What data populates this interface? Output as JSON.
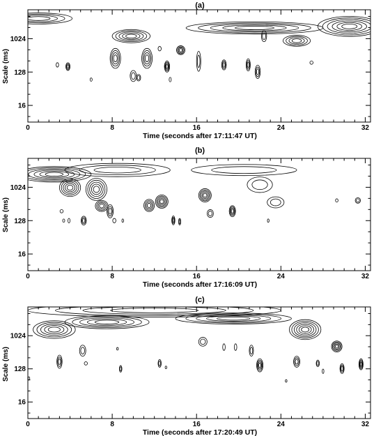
{
  "chart_data": [
    {
      "type": "contour",
      "panel_label": "(a)",
      "xlabel": "Time (seconds after 17:11:47 UT)",
      "ylabel": "Scale (ms)",
      "xlim": [
        0,
        32.5
      ],
      "ylim_log2": [
        2.5,
        12.6
      ],
      "x_ticks": [
        0,
        8,
        16,
        24,
        32
      ],
      "y_ticks": [
        {
          "label": "16",
          "value": 16
        },
        {
          "label": "128",
          "value": 128
        },
        {
          "label": "1024",
          "value": 1024
        }
      ],
      "features": [
        {
          "x": 1.0,
          "scale": 3600,
          "wx": 3.2,
          "wy": 0.5,
          "levels": 4
        },
        {
          "x": 9.8,
          "scale": 1200,
          "wx": 1.8,
          "wy": 0.6,
          "levels": 5
        },
        {
          "x": 8.3,
          "scale": 300,
          "wx": 0.5,
          "wy": 0.9,
          "levels": 4
        },
        {
          "x": 11.3,
          "scale": 300,
          "wx": 0.5,
          "wy": 0.9,
          "levels": 4
        },
        {
          "x": 10.0,
          "scale": 100,
          "wx": 0.3,
          "wy": 0.5,
          "levels": 2
        },
        {
          "x": 3.8,
          "scale": 180,
          "wx": 0.2,
          "wy": 0.35,
          "levels": 3
        },
        {
          "x": 2.8,
          "scale": 200,
          "wx": 0.12,
          "wy": 0.2,
          "levels": 1
        },
        {
          "x": 6.0,
          "scale": 80,
          "wx": 0.1,
          "wy": 0.15,
          "levels": 1
        },
        {
          "x": 10.5,
          "scale": 90,
          "wx": 0.2,
          "wy": 0.3,
          "levels": 2
        },
        {
          "x": 12.5,
          "scale": 550,
          "wx": 0.15,
          "wy": 0.2,
          "levels": 1
        },
        {
          "x": 13.2,
          "scale": 180,
          "wx": 0.25,
          "wy": 0.5,
          "levels": 4
        },
        {
          "x": 13.5,
          "scale": 80,
          "wx": 0.1,
          "wy": 0.2,
          "levels": 1
        },
        {
          "x": 14.5,
          "scale": 500,
          "wx": 0.4,
          "wy": 0.4,
          "levels": 4
        },
        {
          "x": 16.2,
          "scale": 250,
          "wx": 0.2,
          "wy": 0.9,
          "levels": 2
        },
        {
          "x": 18.6,
          "scale": 200,
          "wx": 0.22,
          "wy": 0.45,
          "levels": 3
        },
        {
          "x": 20.9,
          "scale": 200,
          "wx": 0.2,
          "wy": 0.55,
          "levels": 3
        },
        {
          "x": 22.4,
          "scale": 1200,
          "wx": 0.25,
          "wy": 0.5,
          "levels": 2
        },
        {
          "x": 21.8,
          "scale": 130,
          "wx": 0.25,
          "wy": 0.6,
          "levels": 3
        },
        {
          "x": 21.5,
          "scale": 2000,
          "wx": 6.5,
          "wy": 0.55,
          "levels": 5
        },
        {
          "x": 25.5,
          "scale": 900,
          "wx": 1.3,
          "wy": 0.5,
          "levels": 4
        },
        {
          "x": 26.9,
          "scale": 230,
          "wx": 0.15,
          "wy": 0.15,
          "levels": 1
        },
        {
          "x": 30.5,
          "scale": 2200,
          "wx": 3.0,
          "wy": 0.9,
          "levels": 6
        }
      ]
    },
    {
      "type": "contour",
      "panel_label": "(b)",
      "xlabel": "Time (seconds after 17:16:09 UT)",
      "ylabel": "Scale (ms)",
      "xlim": [
        0,
        32.5
      ],
      "ylim_log2": [
        2.5,
        12.6
      ],
      "x_ticks": [
        0,
        8,
        16,
        24,
        32
      ],
      "y_ticks": [
        {
          "label": "16",
          "value": 16
        },
        {
          "label": "128",
          "value": 128
        },
        {
          "label": "1024",
          "value": 1024
        }
      ],
      "features": [
        {
          "x": 2.5,
          "scale": 2300,
          "wx": 3.5,
          "wy": 0.7,
          "levels": 6
        },
        {
          "x": 4.0,
          "scale": 1000,
          "wx": 1.0,
          "wy": 0.8,
          "levels": 5
        },
        {
          "x": 6.5,
          "scale": 900,
          "wx": 1.0,
          "wy": 1.0,
          "levels": 5
        },
        {
          "x": 8.5,
          "scale": 3000,
          "wx": 5.0,
          "wy": 0.6,
          "levels": 3
        },
        {
          "x": 3.2,
          "scale": 230,
          "wx": 0.15,
          "wy": 0.15,
          "levels": 1
        },
        {
          "x": 3.4,
          "scale": 128,
          "wx": 0.1,
          "wy": 0.15,
          "levels": 1
        },
        {
          "x": 3.9,
          "scale": 128,
          "wx": 0.1,
          "wy": 0.2,
          "levels": 1
        },
        {
          "x": 5.3,
          "scale": 128,
          "wx": 0.25,
          "wy": 0.4,
          "levels": 3
        },
        {
          "x": 7.0,
          "scale": 320,
          "wx": 0.6,
          "wy": 0.5,
          "levels": 4
        },
        {
          "x": 7.8,
          "scale": 230,
          "wx": 0.3,
          "wy": 0.6,
          "levels": 3
        },
        {
          "x": 8.2,
          "scale": 128,
          "wx": 0.15,
          "wy": 0.2,
          "levels": 1
        },
        {
          "x": 9.0,
          "scale": 128,
          "wx": 0.08,
          "wy": 0.15,
          "levels": 1
        },
        {
          "x": 11.5,
          "scale": 330,
          "wx": 0.5,
          "wy": 0.55,
          "levels": 4
        },
        {
          "x": 12.7,
          "scale": 420,
          "wx": 0.6,
          "wy": 0.6,
          "levels": 5
        },
        {
          "x": 13.8,
          "scale": 130,
          "wx": 0.15,
          "wy": 0.4,
          "levels": 3
        },
        {
          "x": 14.4,
          "scale": 120,
          "wx": 0.1,
          "wy": 0.3,
          "levels": 2
        },
        {
          "x": 16.8,
          "scale": 620,
          "wx": 0.6,
          "wy": 0.6,
          "levels": 5
        },
        {
          "x": 17.3,
          "scale": 200,
          "wx": 0.3,
          "wy": 0.35,
          "levels": 2
        },
        {
          "x": 19.4,
          "scale": 230,
          "wx": 0.3,
          "wy": 0.5,
          "levels": 4
        },
        {
          "x": 20.5,
          "scale": 3000,
          "wx": 5.0,
          "wy": 0.5,
          "levels": 2
        },
        {
          "x": 22.0,
          "scale": 1200,
          "wx": 1.2,
          "wy": 0.7,
          "levels": 2
        },
        {
          "x": 22.8,
          "scale": 128,
          "wx": 0.08,
          "wy": 0.15,
          "levels": 1
        },
        {
          "x": 23.5,
          "scale": 400,
          "wx": 0.8,
          "wy": 0.5,
          "levels": 2
        },
        {
          "x": 29.3,
          "scale": 450,
          "wx": 0.12,
          "wy": 0.15,
          "levels": 1
        },
        {
          "x": 31.3,
          "scale": 450,
          "wx": 0.25,
          "wy": 0.25,
          "levels": 2
        }
      ]
    },
    {
      "type": "contour",
      "panel_label": "(c)",
      "xlabel": "Time (seconds after 17:20:49 UT)",
      "ylabel": "Scale (ms)",
      "xlim": [
        0,
        32.5
      ],
      "ylim_log2": [
        2.5,
        12.6
      ],
      "x_ticks": [
        0,
        8,
        16,
        24,
        32
      ],
      "y_ticks": [
        {
          "label": "16",
          "value": 16
        },
        {
          "label": "128",
          "value": 128
        },
        {
          "label": "1024",
          "value": 1024
        }
      ],
      "features": [
        {
          "x": 12.0,
          "scale": 5000,
          "wx": 12.0,
          "wy": 0.6,
          "levels": 4
        },
        {
          "x": 2.5,
          "scale": 1500,
          "wx": 2.0,
          "wy": 0.8,
          "levels": 5
        },
        {
          "x": 7.5,
          "scale": 2400,
          "wx": 4.0,
          "wy": 0.6,
          "levels": 5
        },
        {
          "x": 19.5,
          "scale": 3000,
          "wx": 5.5,
          "wy": 0.5,
          "levels": 5
        },
        {
          "x": 26.3,
          "scale": 1500,
          "wx": 1.5,
          "wy": 0.9,
          "levels": 6
        },
        {
          "x": 3.0,
          "scale": 200,
          "wx": 0.25,
          "wy": 0.6,
          "levels": 3
        },
        {
          "x": 5.2,
          "scale": 400,
          "wx": 0.3,
          "wy": 0.5,
          "levels": 2
        },
        {
          "x": 5.5,
          "scale": 180,
          "wx": 0.15,
          "wy": 0.15,
          "levels": 1
        },
        {
          "x": 8.5,
          "scale": 450,
          "wx": 0.08,
          "wy": 0.12,
          "levels": 1
        },
        {
          "x": 8.8,
          "scale": 128,
          "wx": 0.12,
          "wy": 0.3,
          "levels": 2
        },
        {
          "x": 12.5,
          "scale": 180,
          "wx": 0.15,
          "wy": 0.35,
          "levels": 2
        },
        {
          "x": 13.1,
          "scale": 140,
          "wx": 0.08,
          "wy": 0.12,
          "levels": 1
        },
        {
          "x": 16.6,
          "scale": 700,
          "wx": 0.4,
          "wy": 0.4,
          "levels": 2
        },
        {
          "x": 18.6,
          "scale": 500,
          "wx": 0.12,
          "wy": 0.3,
          "levels": 1
        },
        {
          "x": 19.7,
          "scale": 500,
          "wx": 0.12,
          "wy": 0.3,
          "levels": 1
        },
        {
          "x": 21.2,
          "scale": 400,
          "wx": 0.2,
          "wy": 0.5,
          "levels": 2
        },
        {
          "x": 22.0,
          "scale": 160,
          "wx": 0.3,
          "wy": 0.6,
          "levels": 4
        },
        {
          "x": 24.5,
          "scale": 60,
          "wx": 0.08,
          "wy": 0.12,
          "levels": 1
        },
        {
          "x": 25.5,
          "scale": 200,
          "wx": 0.3,
          "wy": 0.5,
          "levels": 3
        },
        {
          "x": 27.5,
          "scale": 180,
          "wx": 0.15,
          "wy": 0.3,
          "levels": 2
        },
        {
          "x": 28.0,
          "scale": 110,
          "wx": 0.08,
          "wy": 0.2,
          "levels": 1
        },
        {
          "x": 29.3,
          "scale": 520,
          "wx": 0.5,
          "wy": 0.5,
          "levels": 5
        },
        {
          "x": 29.8,
          "scale": 130,
          "wx": 0.2,
          "wy": 0.45,
          "levels": 3
        },
        {
          "x": 31.6,
          "scale": 170,
          "wx": 0.2,
          "wy": 0.5,
          "levels": 4
        },
        {
          "x": 0.1,
          "scale": 70,
          "wx": 0.08,
          "wy": 0.15,
          "levels": 1
        }
      ]
    }
  ]
}
